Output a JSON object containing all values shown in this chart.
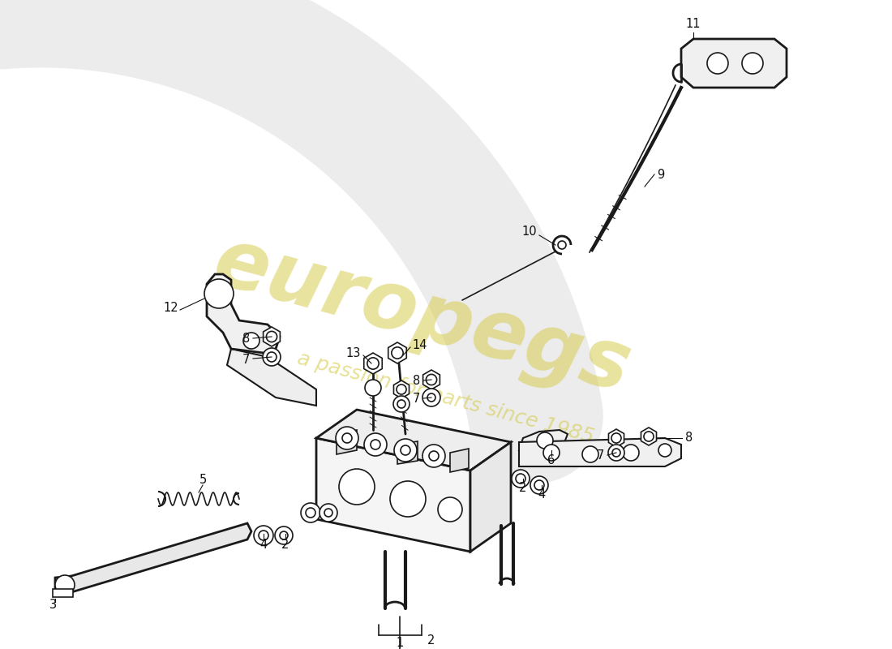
{
  "bg_color": "#ffffff",
  "watermark_text1": "europegs",
  "watermark_text2": "a passion for parts since 1985",
  "watermark_color": "#d4c840",
  "line_color": "#1a1a1a",
  "label_fontsize": 10.5,
  "fig_width": 11.0,
  "fig_height": 8.0,
  "dpi": 100,
  "swirl_color": "#e0e0e0",
  "swirl_alpha": 0.6,
  "label_color": "#111111"
}
